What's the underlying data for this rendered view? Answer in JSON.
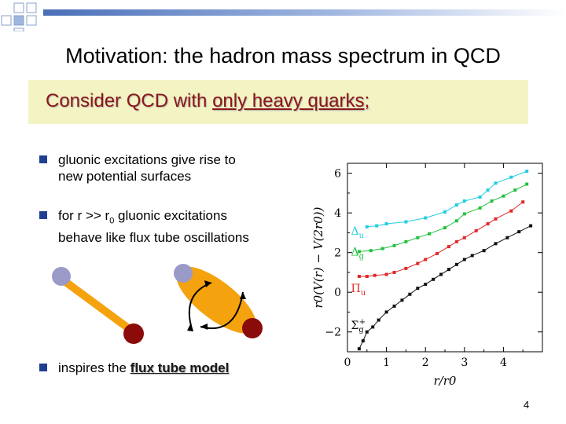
{
  "slide": {
    "title": "Motivation: the hadron mass spectrum in QCD",
    "consider_prefix": "Consider QCD with ",
    "consider_underlined": "only heavy quarks;",
    "bullets": [
      {
        "line1": "gluonic excitations give rise to",
        "line2": "new potential surfaces"
      },
      {
        "line1_prefix": "for r >> r",
        "line1_sub": "0",
        "line1_suffix": " gluonic excitations",
        "line2": "behave like flux tube oscillations"
      },
      {
        "prefix": "inspires the ",
        "link": "flux tube model"
      }
    ],
    "page_number": "4"
  },
  "colors": {
    "bullet": "#1f3f8f",
    "consider_bg": "#f3f3c4",
    "consider_text": "#8b1616",
    "quark_light": "#9a9ac8",
    "quark_dark": "#8b0a0a",
    "tube": "#f5a20f"
  },
  "chart_data": {
    "type": "scatter",
    "xlabel": "r/r0",
    "ylabel": "r0(V(r) − V(2r0))",
    "xlim": [
      0,
      5
    ],
    "ylim": [
      -3,
      6.5
    ],
    "xticks": [
      "0",
      "1",
      "2",
      "3",
      "4"
    ],
    "yticks": [
      "−2",
      "0",
      "2",
      "4",
      "6"
    ],
    "series": [
      {
        "name": "Δu",
        "color": "#22cde0",
        "points": [
          [
            0.5,
            3.3
          ],
          [
            0.75,
            3.35
          ],
          [
            1.0,
            3.45
          ],
          [
            1.5,
            3.55
          ],
          [
            2.0,
            3.75
          ],
          [
            2.5,
            4.05
          ],
          [
            2.8,
            4.4
          ],
          [
            3.0,
            4.6
          ],
          [
            3.4,
            4.8
          ],
          [
            3.6,
            5.15
          ],
          [
            3.8,
            5.5
          ],
          [
            4.2,
            5.8
          ],
          [
            4.6,
            6.1
          ]
        ]
      },
      {
        "name": "Δg",
        "color": "#22c040",
        "points": [
          [
            0.3,
            2.05
          ],
          [
            0.6,
            2.1
          ],
          [
            0.9,
            2.2
          ],
          [
            1.2,
            2.35
          ],
          [
            1.5,
            2.55
          ],
          [
            1.8,
            2.75
          ],
          [
            2.1,
            2.95
          ],
          [
            2.5,
            3.25
          ],
          [
            2.8,
            3.6
          ],
          [
            3.0,
            3.95
          ],
          [
            3.4,
            4.25
          ],
          [
            3.7,
            4.6
          ],
          [
            4.0,
            4.85
          ],
          [
            4.3,
            5.15
          ],
          [
            4.6,
            5.45
          ]
        ]
      },
      {
        "name": "Πu",
        "color": "#e02828",
        "points": [
          [
            0.3,
            0.8
          ],
          [
            0.5,
            0.8
          ],
          [
            0.7,
            0.85
          ],
          [
            1.0,
            0.9
          ],
          [
            1.2,
            1.0
          ],
          [
            1.5,
            1.2
          ],
          [
            1.8,
            1.45
          ],
          [
            2.0,
            1.65
          ],
          [
            2.3,
            1.95
          ],
          [
            2.6,
            2.3
          ],
          [
            2.8,
            2.55
          ],
          [
            3.0,
            2.75
          ],
          [
            3.3,
            3.1
          ],
          [
            3.6,
            3.45
          ],
          [
            3.8,
            3.7
          ],
          [
            4.2,
            4.1
          ],
          [
            4.5,
            4.55
          ]
        ]
      },
      {
        "name": "Σg+",
        "color": "#111111",
        "points": [
          [
            0.3,
            -2.85
          ],
          [
            0.4,
            -2.45
          ],
          [
            0.5,
            -2.0
          ],
          [
            0.65,
            -1.75
          ],
          [
            0.8,
            -1.4
          ],
          [
            1.0,
            -1.0
          ],
          [
            1.2,
            -0.7
          ],
          [
            1.4,
            -0.4
          ],
          [
            1.6,
            -0.1
          ],
          [
            1.8,
            0.2
          ],
          [
            2.0,
            0.4
          ],
          [
            2.2,
            0.65
          ],
          [
            2.4,
            0.9
          ],
          [
            2.6,
            1.15
          ],
          [
            2.8,
            1.4
          ],
          [
            3.0,
            1.65
          ],
          [
            3.2,
            1.85
          ],
          [
            3.5,
            2.1
          ],
          [
            3.8,
            2.45
          ],
          [
            4.1,
            2.75
          ],
          [
            4.4,
            3.05
          ],
          [
            4.7,
            3.35
          ]
        ]
      }
    ],
    "labels": [
      {
        "text": "Δ",
        "sub": "u",
        "x": 0.05,
        "y": 2.9,
        "color": "#22cde0"
      },
      {
        "text": "Δ",
        "sub": "g",
        "x": 0.05,
        "y": 1.85,
        "color": "#22c040"
      },
      {
        "text": "Π",
        "sub": "u",
        "x": 0.05,
        "y": 0.0,
        "color": "#e02828"
      },
      {
        "text": "Σ",
        "sub": "g",
        "sup": "+",
        "x": 0.05,
        "y": -1.85,
        "color": "#111111"
      }
    ]
  }
}
